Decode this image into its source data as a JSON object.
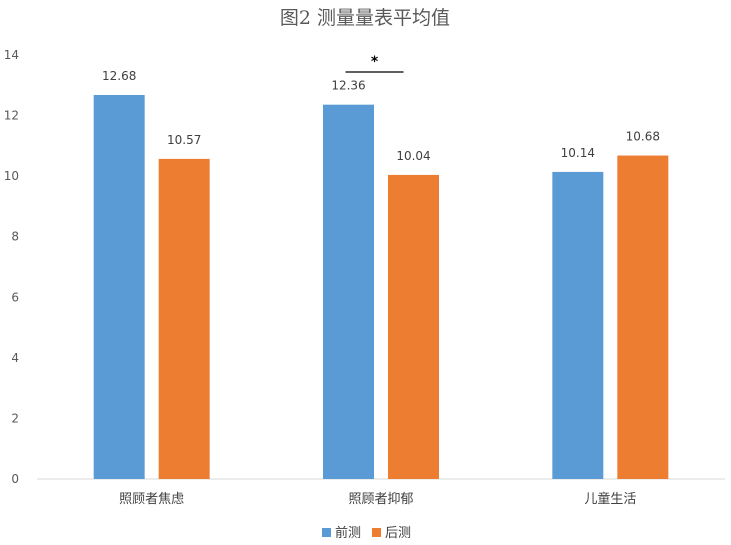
{
  "chart_data": {
    "type": "bar",
    "title": "图2 测量量表平均值",
    "categories": [
      "照顾者焦虑",
      "照顾者抑郁",
      "儿童生活"
    ],
    "series": [
      {
        "name": "前测",
        "values": [
          12.68,
          12.36,
          10.14
        ],
        "color": "#5B9BD5"
      },
      {
        "name": "后测",
        "values": [
          10.57,
          10.04,
          10.68
        ],
        "color": "#ED7D31"
      }
    ],
    "data_labels": [
      [
        "12.68",
        "12.36",
        "10.14"
      ],
      [
        "10.57",
        "10.04",
        "10.68"
      ]
    ],
    "ylim": [
      0,
      14
    ],
    "yticks": [
      "0",
      "2",
      "4",
      "6",
      "8",
      "10",
      "12",
      "14"
    ],
    "xlabel": "",
    "ylabel": "",
    "grid": false,
    "legend_position": "bottom",
    "annotations": [
      {
        "text": "*",
        "category_index": 1
      }
    ]
  }
}
